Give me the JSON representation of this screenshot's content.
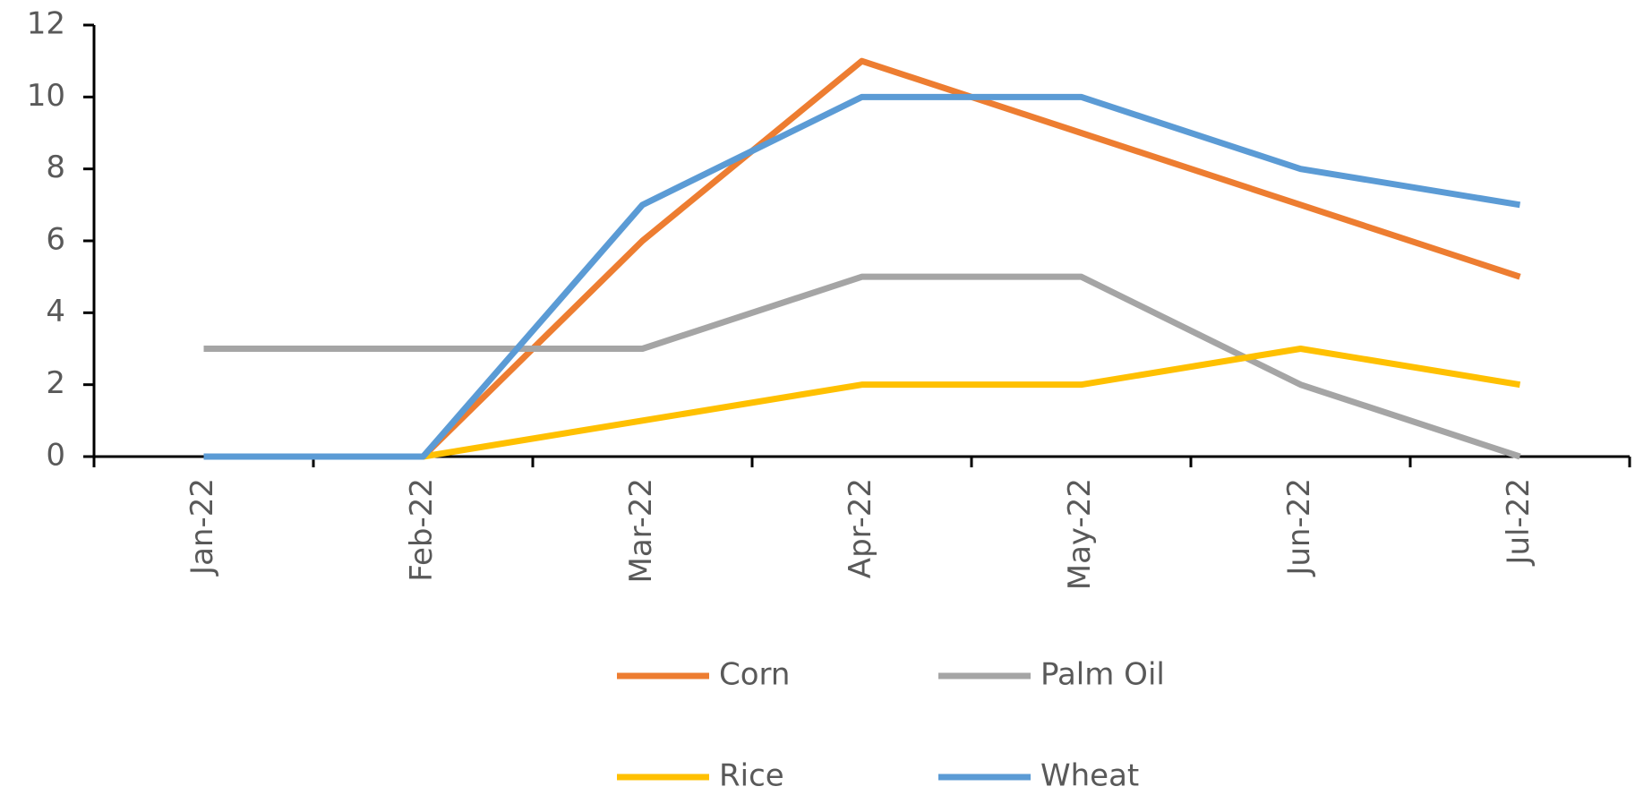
{
  "chart_data": {
    "type": "line",
    "categories": [
      "Jan-22",
      "Feb-22",
      "Mar-22",
      "Apr-22",
      "May-22",
      "Jun-22",
      "Jul-22"
    ],
    "series": [
      {
        "name": "Corn",
        "color": "#ed7d31",
        "values": [
          0,
          0,
          6,
          11,
          9,
          7,
          5
        ]
      },
      {
        "name": "Palm Oil",
        "color": "#a5a5a5",
        "values": [
          3,
          3,
          3,
          5,
          5,
          2,
          0
        ]
      },
      {
        "name": "Rice",
        "color": "#ffc000",
        "values": [
          0,
          0,
          1,
          2,
          2,
          3,
          2
        ]
      },
      {
        "name": "Wheat",
        "color": "#5b9bd5",
        "values": [
          0,
          0,
          7,
          10,
          10,
          8,
          7
        ]
      }
    ],
    "ylim": [
      0,
      12
    ],
    "yticks": [
      0,
      2,
      4,
      6,
      8,
      10,
      12
    ],
    "grid": false,
    "legend": "bottom"
  }
}
